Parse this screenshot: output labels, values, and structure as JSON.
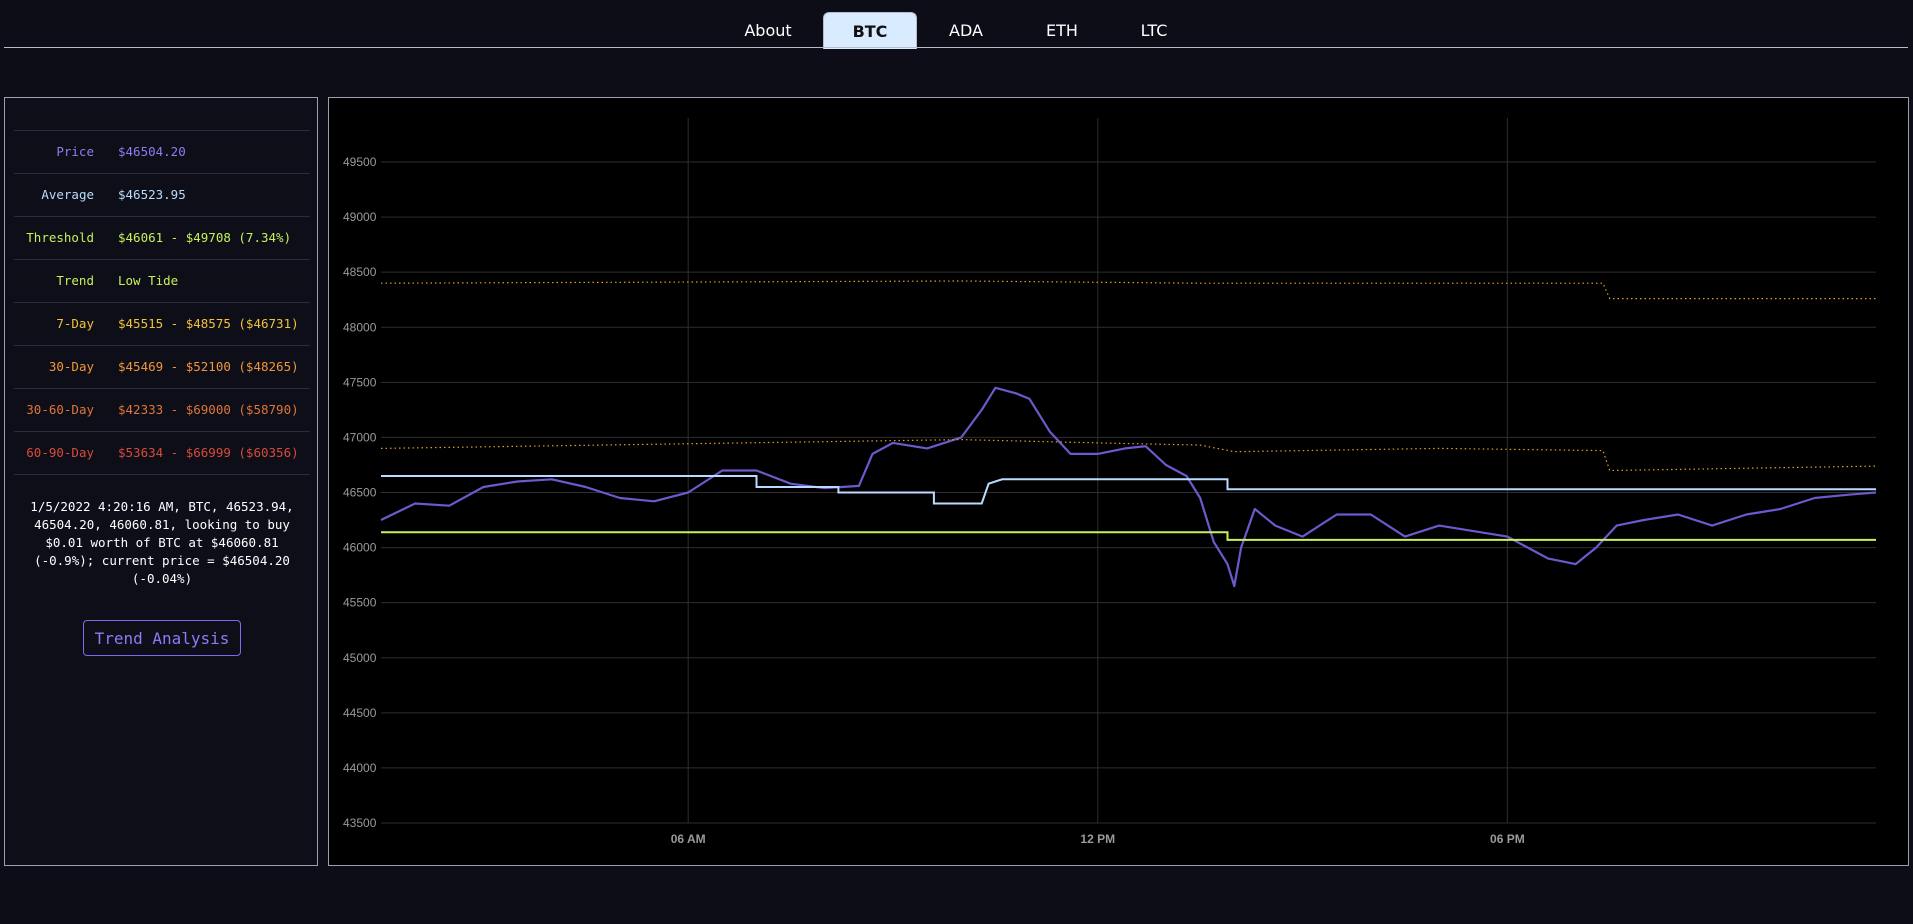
{
  "tabs": [
    {
      "label": "About",
      "active": false
    },
    {
      "label": "BTC",
      "active": true
    },
    {
      "label": "ADA",
      "active": false
    },
    {
      "label": "ETH",
      "active": false
    },
    {
      "label": "LTC",
      "active": false
    }
  ],
  "stats": [
    {
      "label": "Price",
      "value": "$46504.20",
      "color": "#8f7cf0"
    },
    {
      "label": "Average",
      "value": "$46523.95",
      "color": "#b8dcff"
    },
    {
      "label": "Threshold",
      "value": "$46061 - $49708 (7.34%)",
      "color": "#c5f25a"
    },
    {
      "label": "Trend",
      "value": "Low Tide",
      "color": "#c5f25a"
    },
    {
      "label": "7-Day",
      "value": "$45515 - $48575 ($46731)",
      "color": "#f2c23a"
    },
    {
      "label": "30-Day",
      "value": "$45469 - $52100 ($48265)",
      "color": "#f0963a"
    },
    {
      "label": "30-60-Day",
      "value": "$42333 - $69000 ($58790)",
      "color": "#e0743a"
    },
    {
      "label": "60-90-Day",
      "value": "$53634 - $66999 ($60356)",
      "color": "#d94a3a"
    }
  ],
  "log_message": "1/5/2022 4:20:16 AM, BTC, 46523.94, 46504.20, 46060.81, looking to buy $0.01 worth of BTC at $46060.81 (-0.9%); current price = $46504.20 (-0.04%)",
  "trend_button_label": "Trend Analysis",
  "chart_data": {
    "type": "line",
    "y_ticks": [
      "49500",
      "49000",
      "48500",
      "48000",
      "47500",
      "47000",
      "46500",
      "46000",
      "45500",
      "45000",
      "44500",
      "44000",
      "43500"
    ],
    "ylim": [
      43500,
      49500
    ],
    "x_ticks": [
      "06 AM",
      "12 PM",
      "06 PM"
    ],
    "x_hours_range": [
      1.5,
      23.4
    ],
    "x_tick_hours": [
      6,
      12,
      18
    ],
    "grid": true,
    "series": [
      {
        "role": "price",
        "color": "#6a5acd",
        "style": "solid",
        "points": [
          [
            1.5,
            46250
          ],
          [
            2,
            46400
          ],
          [
            2.5,
            46380
          ],
          [
            3,
            46550
          ],
          [
            3.5,
            46600
          ],
          [
            4,
            46620
          ],
          [
            4.5,
            46550
          ],
          [
            5,
            46450
          ],
          [
            5.5,
            46420
          ],
          [
            6,
            46500
          ],
          [
            6.5,
            46700
          ],
          [
            7,
            46700
          ],
          [
            7.5,
            46580
          ],
          [
            8,
            46540
          ],
          [
            8.5,
            46560
          ],
          [
            8.7,
            46850
          ],
          [
            9,
            46950
          ],
          [
            9.5,
            46900
          ],
          [
            10,
            47000
          ],
          [
            10.3,
            47250
          ],
          [
            10.5,
            47450
          ],
          [
            10.8,
            47400
          ],
          [
            11,
            47350
          ],
          [
            11.3,
            47050
          ],
          [
            11.6,
            46850
          ],
          [
            12,
            46850
          ],
          [
            12.4,
            46900
          ],
          [
            12.7,
            46920
          ],
          [
            13,
            46750
          ],
          [
            13.3,
            46650
          ],
          [
            13.5,
            46450
          ],
          [
            13.7,
            46050
          ],
          [
            13.9,
            45850
          ],
          [
            14,
            45650
          ],
          [
            14.1,
            46000
          ],
          [
            14.3,
            46350
          ],
          [
            14.6,
            46200
          ],
          [
            15,
            46100
          ],
          [
            15.5,
            46300
          ],
          [
            16,
            46300
          ],
          [
            16.5,
            46100
          ],
          [
            17,
            46200
          ],
          [
            17.5,
            46150
          ],
          [
            18,
            46100
          ],
          [
            18.3,
            46000
          ],
          [
            18.6,
            45900
          ],
          [
            19,
            45850
          ],
          [
            19.3,
            46000
          ],
          [
            19.6,
            46200
          ],
          [
            20,
            46250
          ],
          [
            20.5,
            46300
          ],
          [
            21,
            46200
          ],
          [
            21.5,
            46300
          ],
          [
            22,
            46350
          ],
          [
            22.5,
            46450
          ],
          [
            23,
            46480
          ],
          [
            23.4,
            46500
          ]
        ]
      },
      {
        "role": "average",
        "color": "#b8dcff",
        "style": "step",
        "points": [
          [
            1.5,
            46650
          ],
          [
            7,
            46650
          ],
          [
            7,
            46550
          ],
          [
            8.2,
            46550
          ],
          [
            8.2,
            46500
          ],
          [
            9.6,
            46500
          ],
          [
            9.6,
            46400
          ],
          [
            10.3,
            46400
          ],
          [
            10.4,
            46580
          ],
          [
            10.6,
            46620
          ],
          [
            13.9,
            46620
          ],
          [
            13.9,
            46530
          ],
          [
            23.4,
            46530
          ]
        ]
      },
      {
        "role": "threshold",
        "color": "#c5f25a",
        "style": "step",
        "points": [
          [
            1.5,
            46140
          ],
          [
            13.9,
            46140
          ],
          [
            13.9,
            46070
          ],
          [
            23.4,
            46070
          ]
        ]
      },
      {
        "role": "7-day high",
        "color": "#e0a020",
        "style": "dotted",
        "points": [
          [
            1.5,
            48400
          ],
          [
            10,
            48420
          ],
          [
            13.5,
            48400
          ],
          [
            18,
            48400
          ],
          [
            19.4,
            48400
          ],
          [
            19.5,
            48260
          ],
          [
            23.4,
            48260
          ]
        ]
      },
      {
        "role": "7-day average",
        "color": "#e0a020",
        "style": "dotted",
        "points": [
          [
            1.5,
            46900
          ],
          [
            10,
            46980
          ],
          [
            12,
            46950
          ],
          [
            13.5,
            46930
          ],
          [
            14,
            46870
          ],
          [
            17,
            46900
          ],
          [
            19.4,
            46880
          ],
          [
            19.5,
            46700
          ],
          [
            23.4,
            46740
          ]
        ]
      }
    ]
  }
}
